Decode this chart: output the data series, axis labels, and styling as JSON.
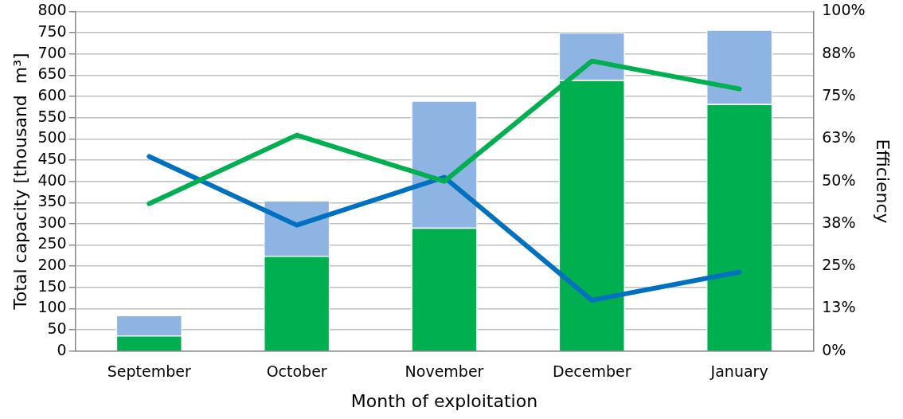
{
  "chart_data": {
    "type": "bar",
    "stacked": true,
    "xlabel": "Month of exploitation",
    "ylabel": "Total capacity [thousand  m³]",
    "y2label": "Efficiency",
    "categories": [
      "September",
      "October",
      "November",
      "December",
      "January"
    ],
    "series": [
      {
        "color": "#00b050",
        "values": [
          37,
          225,
          291,
          639,
          582
        ]
      },
      {
        "color": "#8eb4e3",
        "values": [
          48,
          130,
          299,
          112,
          175
        ]
      },
      {
        "type": "line",
        "axis": "y2",
        "color": "#00b050",
        "values": [
          43.4,
          63.6,
          50.0,
          85.4,
          77.2
        ]
      },
      {
        "type": "line",
        "axis": "y2",
        "color": "#0070c0",
        "values": [
          57.3,
          37.1,
          51.2,
          15.0,
          23.3
        ]
      }
    ],
    "ylim": [
      0,
      800
    ],
    "yticks": [
      0,
      50,
      100,
      150,
      200,
      250,
      300,
      350,
      400,
      450,
      500,
      550,
      600,
      650,
      700,
      750,
      800
    ],
    "y2lim": [
      0,
      100
    ],
    "y2ticks": [
      {
        "value": 0,
        "label": "0%"
      },
      {
        "value": 12.5,
        "label": "13%"
      },
      {
        "value": 25,
        "label": "25%"
      },
      {
        "value": 37.5,
        "label": "38%"
      },
      {
        "value": 50,
        "label": "50%"
      },
      {
        "value": 62.5,
        "label": "63%"
      },
      {
        "value": 75,
        "label": "75%"
      },
      {
        "value": 87.5,
        "label": "88%"
      },
      {
        "value": 100,
        "label": "100%"
      }
    ],
    "grid": "y",
    "legend": false,
    "marker": "none",
    "line_style": "solid"
  }
}
